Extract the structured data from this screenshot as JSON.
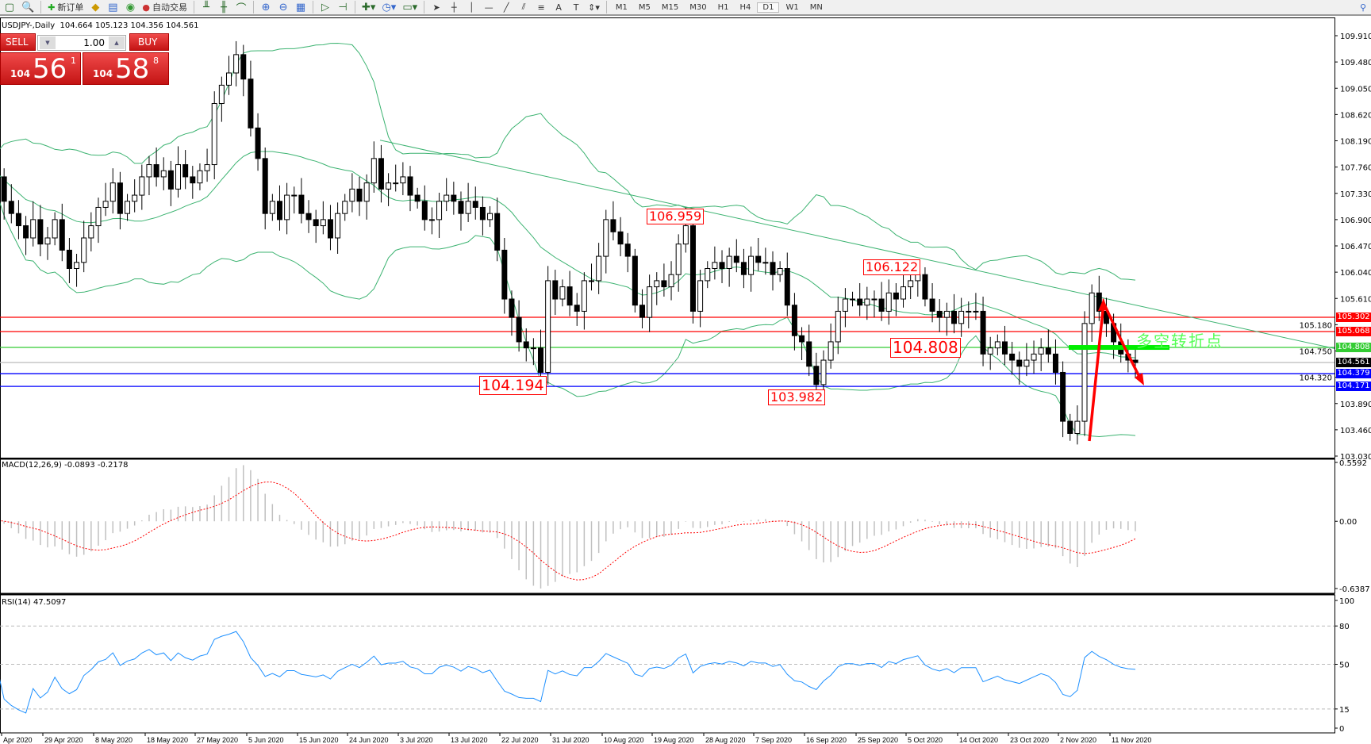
{
  "toolbar": {
    "new_order": "新订单",
    "auto_trading": "自动交易",
    "timeframes": [
      "M1",
      "M5",
      "M15",
      "M30",
      "H1",
      "H4",
      "D1",
      "W1",
      "MN"
    ],
    "active_timeframe": "D1"
  },
  "symbol_title": "USDJPY-,Daily  104.664 105.123 104.356 104.561",
  "trade_panel": {
    "sell_label": "SELL",
    "buy_label": "BUY",
    "lot": "1.00",
    "sell_small": "104",
    "sell_big": "56",
    "sell_sup": "1",
    "buy_small": "104",
    "buy_big": "58",
    "buy_sup": "8",
    "color": "#d42020"
  },
  "chart_data": {
    "type": "candlestick",
    "symbol": "USDJPY-",
    "period": "Daily",
    "ylim": [
      103.03,
      109.91
    ],
    "price_ticks": [
      "109.910",
      "109.480",
      "109.050",
      "108.620",
      "108.190",
      "107.760",
      "107.330",
      "106.900",
      "106.470",
      "106.040",
      "105.610",
      "105.180",
      "104.750",
      "104.320",
      "103.890",
      "103.460",
      "103.030"
    ],
    "date_labels": [
      "Apr 2020",
      "29 Apr 2020",
      "8 May 2020",
      "18 May 2020",
      "27 May 2020",
      "5 Jun 2020",
      "15 Jun 2020",
      "24 Jun 2020",
      "3 Jul 2020",
      "13 Jul 2020",
      "22 Jul 2020",
      "31 Jul 2020",
      "10 Aug 2020",
      "19 Aug 2020",
      "28 Aug 2020",
      "7 Sep 2020",
      "16 Sep 2020",
      "25 Sep 2020",
      "5 Oct 2020",
      "14 Oct 2020",
      "23 Oct 2020",
      "2 Nov 2020",
      "11 Nov 2020"
    ],
    "close": [
      107.6,
      107.8,
      107.6,
      107.2,
      107.0,
      106.8,
      106.6,
      106.9,
      106.5,
      106.6,
      106.9,
      106.4,
      106.1,
      106.2,
      106.6,
      106.8,
      107.1,
      107.2,
      107.5,
      107.0,
      107.2,
      107.3,
      107.6,
      107.8,
      107.6,
      107.7,
      107.4,
      107.8,
      107.6,
      107.5,
      107.7,
      107.8,
      108.8,
      109.1,
      109.3,
      109.6,
      109.2,
      108.4,
      107.9,
      107.0,
      107.2,
      106.9,
      107.3,
      107.3,
      107.0,
      106.9,
      106.8,
      106.9,
      106.6,
      107.0,
      107.2,
      107.4,
      107.2,
      107.5,
      107.9,
      107.4,
      107.5,
      107.5,
      107.6,
      107.3,
      107.2,
      106.9,
      106.9,
      107.2,
      107.3,
      107.2,
      107.0,
      107.2,
      107.1,
      106.9,
      107.0,
      106.4,
      105.6,
      105.3,
      104.9,
      104.8,
      104.8,
      104.4,
      105.9,
      105.6,
      105.8,
      105.5,
      105.4,
      105.9,
      105.9,
      106.3,
      106.9,
      106.7,
      106.5,
      106.3,
      105.5,
      105.3,
      105.8,
      105.9,
      105.8,
      106.0,
      106.5,
      106.8,
      105.4,
      105.9,
      106.1,
      106.2,
      106.1,
      106.3,
      106.2,
      106.0,
      106.3,
      106.2,
      106.2,
      106.0,
      106.1,
      105.5,
      105.0,
      104.9,
      104.5,
      104.2,
      104.6,
      104.9,
      105.4,
      105.6,
      105.6,
      105.5,
      105.6,
      105.6,
      105.4,
      105.7,
      105.6,
      105.8,
      105.9,
      106.0,
      105.6,
      105.4,
      105.3,
      105.4,
      105.2,
      105.4,
      105.4,
      105.4,
      104.7,
      104.8,
      104.9,
      104.7,
      104.6,
      104.5,
      104.6,
      104.7,
      104.8,
      104.7,
      104.4,
      103.6,
      103.4,
      103.6,
      105.2,
      105.7,
      105.4,
      105.2,
      104.9,
      104.7,
      104.6,
      104.561
    ],
    "indicators": {
      "bollinger": {
        "color": "#3cb371"
      }
    },
    "horizontal_lines": [
      {
        "price": "105.302",
        "color": "#ff0000"
      },
      {
        "price": "105.068",
        "color": "#ff0000"
      },
      {
        "price": "104.808",
        "color": "#33cc33"
      },
      {
        "price": "104.561",
        "color": "#000000",
        "line_color": "#c0c0c0"
      },
      {
        "price": "104.379",
        "color": "#0000ff"
      },
      {
        "price": "104.171",
        "color": "#0000ff"
      }
    ],
    "annotations": [
      "106.959",
      "106.122",
      "104.808",
      "104.194",
      "103.982"
    ],
    "annotation_text": "多空转折点",
    "macd": {
      "label": "MACD(12,26,9) -0.0893 -0.2178",
      "ticks": [
        "0.5592",
        "0.00",
        "-0.6387"
      ],
      "ylim": [
        -0.6387,
        0.5592
      ]
    },
    "rsi": {
      "label": "RSI(14) 47.5097",
      "ticks": [
        "100",
        "80",
        "50",
        "15",
        "0"
      ],
      "levels": [
        80,
        50,
        15
      ],
      "color": "#1e90ff"
    }
  }
}
